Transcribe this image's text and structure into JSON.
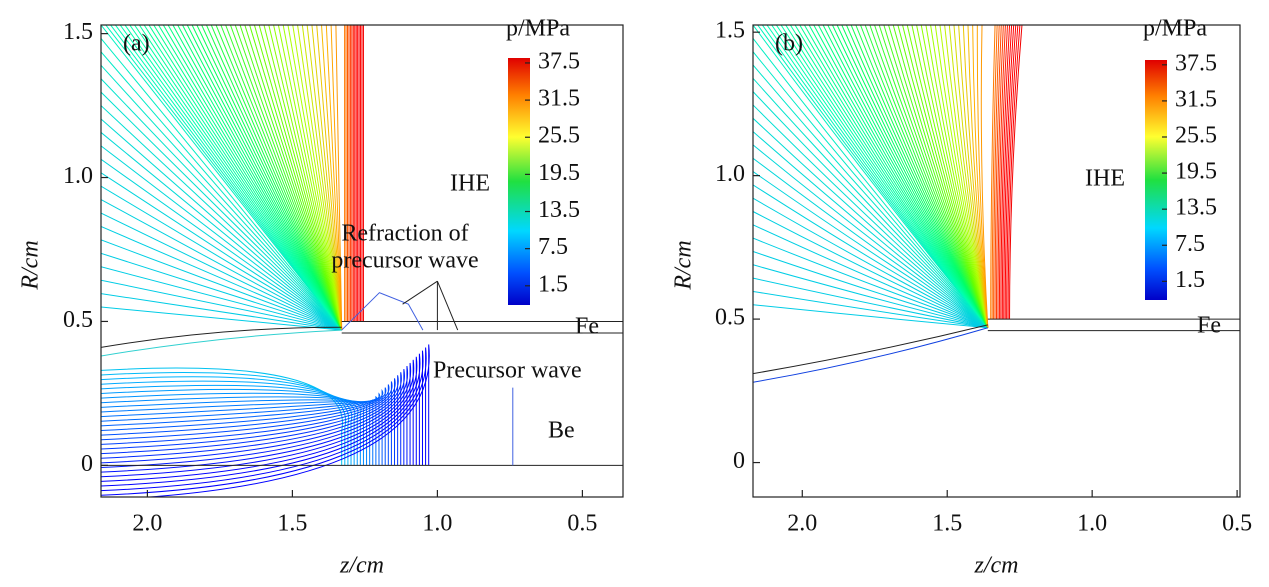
{
  "chart_data": [
    {
      "type": "contour",
      "panel_label": "(a)",
      "xlabel": "z/cm",
      "ylabel": "R/cm",
      "xlim": [
        2.16,
        0.36
      ],
      "ylim": [
        -0.11,
        1.53
      ],
      "xticks": [
        {
          "value": 2,
          "label": "2.0"
        },
        1.5,
        {
          "value": 1,
          "label": "1.0"
        },
        0.5
      ],
      "yticks": [
        0,
        0.5,
        {
          "value": 1,
          "label": "1.0"
        },
        1.5
      ],
      "colorbar": {
        "title": "p/MPa",
        "clim": [
          -1.6,
          38.3
        ],
        "ticks": [
          37.5,
          31.5,
          25.5,
          19.5,
          13.5,
          7.5,
          1.5
        ]
      },
      "annotations": [
        "IHE",
        "Refraction of",
        "precursor wave",
        "Fe",
        "Precursor wave",
        "Be"
      ]
    },
    {
      "type": "contour",
      "panel_label": "(b)",
      "xlabel": "z/cm",
      "ylabel": "R/cm",
      "xlim": [
        2.17,
        0.49
      ],
      "ylim": [
        -0.12,
        1.525
      ],
      "xticks": [
        {
          "value": 2,
          "label": "2.0"
        },
        1.5,
        {
          "value": 1,
          "label": "1.0"
        },
        0.5
      ],
      "yticks": [
        0,
        0.5,
        {
          "value": 1,
          "label": "1.0"
        },
        1.5
      ],
      "colorbar": {
        "title": "p/MPa",
        "clim": [
          -1.6,
          38.3
        ],
        "ticks": [
          37.5,
          31.5,
          25.5,
          19.5,
          13.5,
          7.5,
          1.5
        ]
      },
      "annotations": [
        "IHE",
        "Fe"
      ]
    }
  ]
}
